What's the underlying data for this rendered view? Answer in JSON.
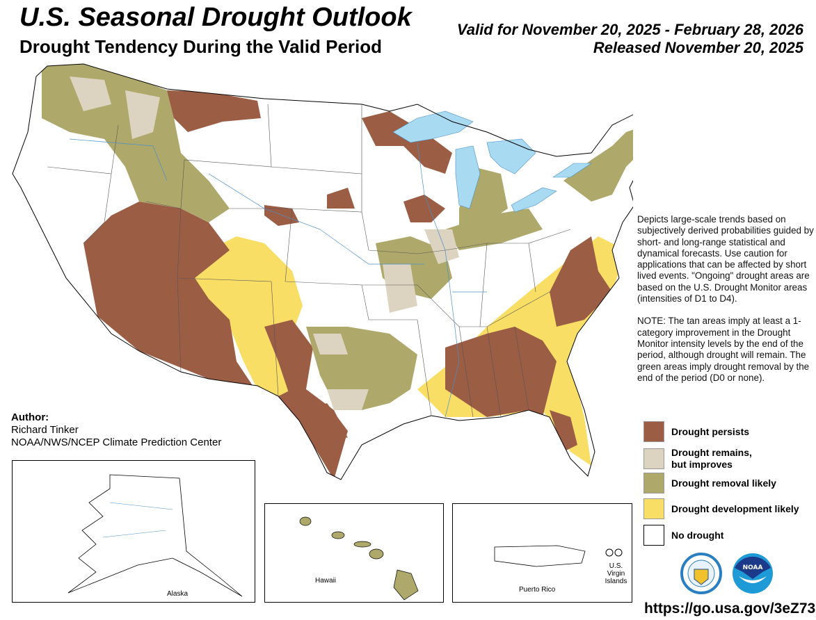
{
  "header": {
    "title": "U.S. Seasonal Drought Outlook",
    "subtitle": "Drought Tendency During the Valid Period",
    "valid_line": "Valid for November 20, 2025 - February 28, 2026",
    "released_line": "Released November 20, 2025"
  },
  "description": {
    "paragraph1": "Depicts large-scale trends based on subjectively derived probabilities guided by short- and long-range statistical and dynamical forecasts. Use caution for applications that can be affected by short lived events. \"Ongoing\" drought areas are based on the U.S. Drought Monitor areas (intensities of D1 to D4).",
    "paragraph2": "NOTE: The tan areas imply at least a 1-category improvement in the Drought Monitor intensity levels by the end of the period, although drought will remain. The green areas imply drought removal by the end of the period (D0 or none)."
  },
  "legend": [
    {
      "label": "Drought persists",
      "color": "#9C5D45"
    },
    {
      "label": "Drought remains,",
      "label2": "but improves",
      "color": "#DDD3C1"
    },
    {
      "label": "Drought removal likely",
      "color": "#AEA96B"
    },
    {
      "label": "Drought development likely",
      "color": "#F9DE66"
    },
    {
      "label": "No drought",
      "color": "#FFFFFF"
    }
  ],
  "author": {
    "heading": "Author:",
    "name": "Richard Tinker",
    "org": "NOAA/NWS/NCEP Climate Prediction Center"
  },
  "insets": {
    "alaska": "Alaska",
    "hawaii": "Hawaii",
    "puerto_rico": "Puerto Rico",
    "usvi_line1": "U.S. Virgin",
    "usvi_line2": "Islands"
  },
  "logos": {
    "doc": "Department of Commerce seal",
    "noaa": "NOAA"
  },
  "url": "https://go.usa.gov/3eZ73",
  "colors": {
    "water": "#A8DAF2",
    "persist": "#9C5D45",
    "improve": "#DDD3C1",
    "removal": "#AEA96B",
    "develop": "#F9DE66"
  }
}
